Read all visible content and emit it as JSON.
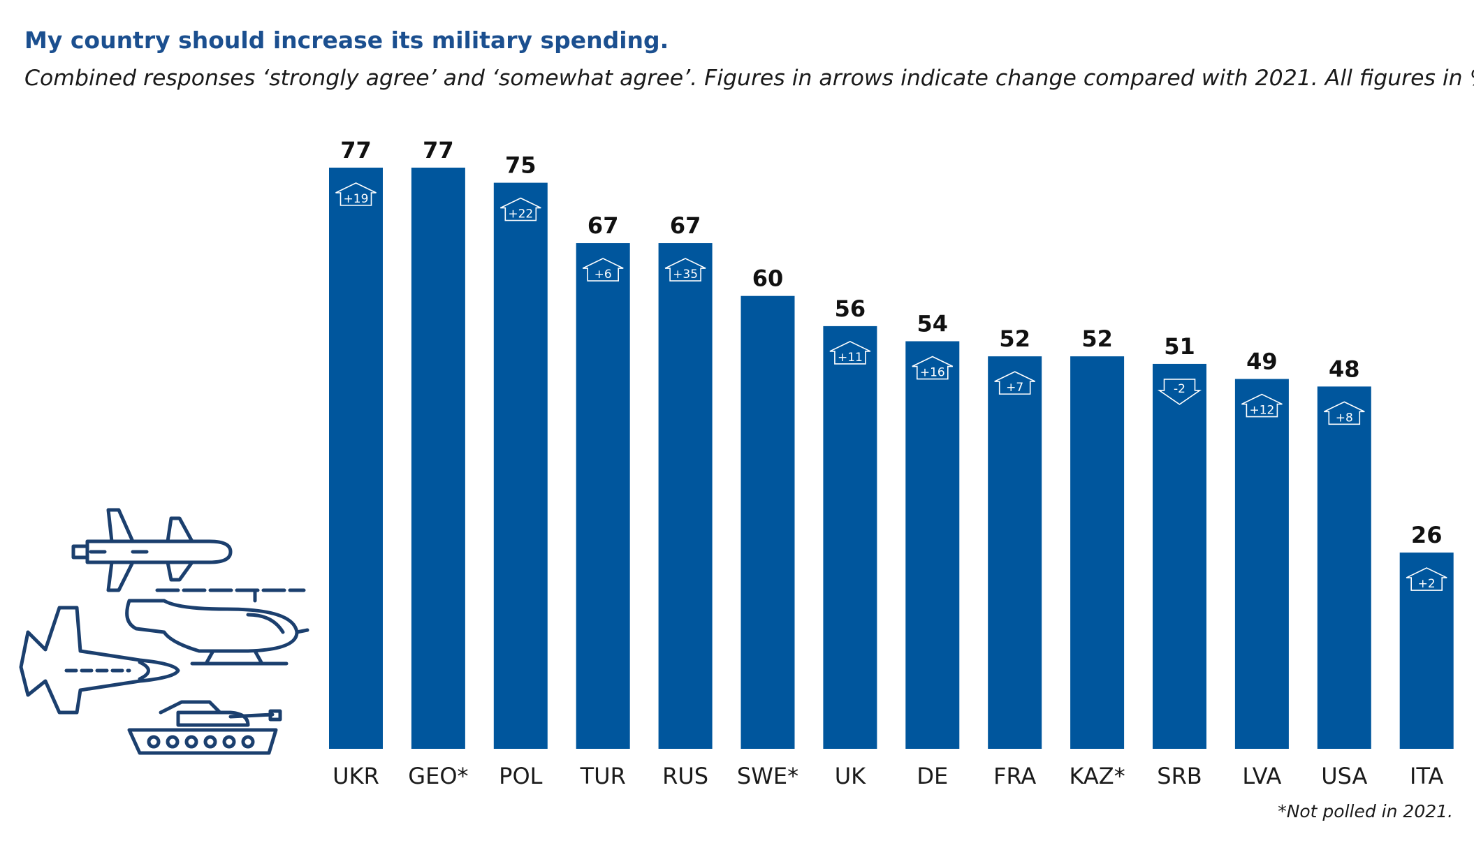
{
  "chart_data": {
    "type": "bar",
    "title": "My country should increase its military spending.",
    "subtitle": "Combined responses ‘strongly agree’ and ‘somewhat agree’. Figures in arrows indicate change compared with 2021. All figures in %",
    "categories": [
      "UKR",
      "GEO*",
      "POL",
      "TUR",
      "RUS",
      "SWE*",
      "UK",
      "DE",
      "FRA",
      "KAZ*",
      "SRB",
      "LVA",
      "USA",
      "ITA"
    ],
    "values": [
      77,
      77,
      75,
      67,
      67,
      60,
      56,
      54,
      52,
      52,
      51,
      49,
      48,
      26
    ],
    "change_vs_2021": [
      "+19",
      null,
      "+22",
      "+6",
      "+35",
      null,
      "+11",
      "+16",
      "+7",
      null,
      "-2",
      "+12",
      "+8",
      "+2"
    ],
    "ylim": [
      0,
      77
    ],
    "grid": false,
    "legend": "none",
    "footnote": "*Not polled in 2021.",
    "colors": {
      "bar": "#00569d",
      "title": "#1b4f8f",
      "icon_stroke": "#1b3f6e",
      "text": "#1a1a1a"
    }
  },
  "illustration": {
    "icons": [
      "missile-icon",
      "fighter-jet-icon",
      "helicopter-icon",
      "tank-icon"
    ]
  }
}
